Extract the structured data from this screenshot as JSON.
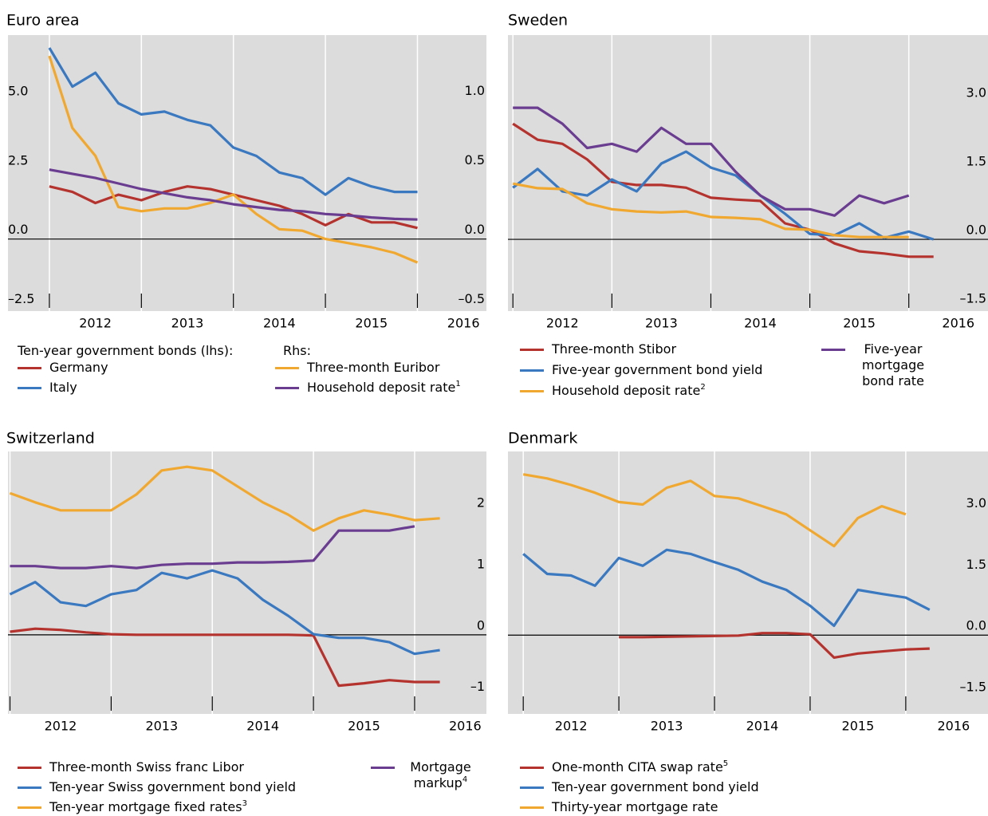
{
  "chart_data": [
    {
      "type": "line",
      "title": "Euro area",
      "legend_groups": [
        "Ten-year government bonds (lhs):",
        "Rhs:"
      ],
      "x": [
        2012,
        2012.25,
        2012.5,
        2012.75,
        2013,
        2013.25,
        2013.5,
        2013.75,
        2014,
        2014.25,
        2014.5,
        2014.75,
        2015,
        2015.25,
        2015.5,
        2015.75,
        2016
      ],
      "xlim": [
        2011.55,
        2016.75
      ],
      "xticks": [
        2012,
        2013,
        2014,
        2015,
        2016
      ],
      "ylim": [
        -2.6,
        7.36
      ],
      "yticks": [
        {
          "value": -2.5,
          "label": "–2.5"
        },
        {
          "value": 0,
          "label": "0.0"
        },
        {
          "value": 2.5,
          "label": "2.5"
        },
        {
          "value": 5,
          "label": "5.0"
        }
      ],
      "y2lim": [
        -0.52,
        1.47
      ],
      "y2ticks": [
        {
          "value": -0.5,
          "label": "–0.5"
        },
        {
          "value": 0,
          "label": "0.0"
        },
        {
          "value": 0.5,
          "label": "0.5"
        },
        {
          "value": 1,
          "label": "1.0"
        }
      ],
      "series": [
        {
          "name": "Germany",
          "color": "#b5332e",
          "values": [
            1.9,
            1.7,
            1.3,
            1.6,
            1.4,
            1.7,
            1.9,
            1.8,
            1.6,
            1.4,
            1.2,
            0.9,
            0.5,
            0.9,
            0.6,
            0.6,
            0.4
          ]
        },
        {
          "name": "Italy",
          "color": "#3a78c0",
          "values": [
            6.9,
            5.5,
            6.0,
            4.9,
            4.5,
            4.6,
            4.3,
            4.1,
            3.3,
            3.0,
            2.4,
            2.2,
            1.6,
            2.2,
            1.9,
            1.7,
            1.7
          ]
        },
        {
          "name": "Three-month Euribor",
          "color": "#f0a830",
          "axis": "y2",
          "values": [
            1.32,
            0.8,
            0.6,
            0.23,
            0.2,
            0.22,
            0.22,
            0.26,
            0.32,
            0.18,
            0.07,
            0.06,
            0,
            -0.03,
            -0.06,
            -0.1,
            -0.17
          ]
        },
        {
          "name": "Household deposit rate",
          "footnote": "1",
          "color": "#6a3d91",
          "axis": "y2",
          "values": [
            0.5,
            0.47,
            0.44,
            0.4,
            0.36,
            0.33,
            0.3,
            0.28,
            0.25,
            0.23,
            0.21,
            0.2,
            0.18,
            0.17,
            0.155,
            0.145,
            0.14
          ]
        }
      ]
    },
    {
      "type": "line",
      "title": "Sweden",
      "x": [
        2012,
        2012.25,
        2012.5,
        2012.75,
        2013,
        2013.25,
        2013.5,
        2013.75,
        2014,
        2014.25,
        2014.5,
        2014.75,
        2015,
        2015.25,
        2015.5,
        2015.75,
        2016,
        2016.25
      ],
      "xlim": [
        2011.95,
        2016.8
      ],
      "xticks": [
        2012,
        2013,
        2014,
        2015,
        2016
      ],
      "ylim": [
        -1.57,
        4.47
      ],
      "yticks": [
        {
          "value": -1.5,
          "label": "–1.5"
        },
        {
          "value": 0,
          "label": "0.0"
        },
        {
          "value": 1.5,
          "label": "1.5"
        },
        {
          "value": 3,
          "label": "3.0"
        }
      ],
      "series": [
        {
          "name": "Three-month Stibor",
          "color": "#b5332e",
          "values": [
            2.53,
            2.18,
            2.09,
            1.75,
            1.26,
            1.19,
            1.19,
            1.13,
            0.91,
            0.87,
            0.84,
            0.35,
            0.21,
            -0.09,
            -0.26,
            -0.31,
            -0.38,
            -0.38
          ]
        },
        {
          "name": "Five-year government bond yield",
          "color": "#3a78c0",
          "values": [
            1.13,
            1.54,
            1.05,
            0.96,
            1.31,
            1.05,
            1.66,
            1.92,
            1.57,
            1.4,
            0.96,
            0.56,
            0.12,
            0.09,
            0.35,
            0.03,
            0.17,
            0
          ]
        },
        {
          "name": "Household deposit rate",
          "footnote": "2",
          "color": "#f0a830",
          "values": [
            1.22,
            1.12,
            1.1,
            0.79,
            0.66,
            0.61,
            0.59,
            0.61,
            0.49,
            0.47,
            0.44,
            0.23,
            0.21,
            0.09,
            0.05,
            0.05,
            0.05,
            null
          ]
        },
        {
          "name": "Five-year mortgage bond rate",
          "color": "#6a3d91",
          "values": [
            2.88,
            2.88,
            2.53,
            2.0,
            2.09,
            1.92,
            2.44,
            2.09,
            2.09,
            1.48,
            0.96,
            0.66,
            0.66,
            0.52,
            0.96,
            0.79,
            0.96,
            null
          ]
        }
      ]
    },
    {
      "type": "line",
      "title": "Switzerland",
      "x": [
        2012,
        2012.25,
        2012.5,
        2012.75,
        2013,
        2013.25,
        2013.5,
        2013.75,
        2014,
        2014.25,
        2014.5,
        2014.75,
        2015,
        2015.25,
        2015.5,
        2015.75,
        2016,
        2016.25
      ],
      "xlim": [
        2011.98,
        2016.71
      ],
      "xticks": [
        2012,
        2013,
        2014,
        2015,
        2016
      ],
      "ylim": [
        -1.29,
        2.99
      ],
      "yticks": [
        {
          "value": -1,
          "label": "–1"
        },
        0,
        1,
        2
      ],
      "series": [
        {
          "name": "Three-month Swiss franc Libor",
          "color": "#b5332e",
          "values": [
            0.05,
            0.1,
            0.08,
            0.04,
            0.01,
            0.0,
            0.0,
            0.0,
            0.0,
            0.0,
            0.0,
            0.0,
            -0.01,
            -0.83,
            -0.79,
            -0.74,
            -0.77,
            -0.77
          ]
        },
        {
          "name": "Ten-year Swiss government bond yield",
          "color": "#3a78c0",
          "values": [
            0.66,
            0.86,
            0.53,
            0.47,
            0.66,
            0.73,
            1.01,
            0.92,
            1.05,
            0.92,
            0.57,
            0.31,
            0.01,
            -0.05,
            -0.05,
            -0.12,
            -0.31,
            -0.25
          ]
        },
        {
          "name": "Ten-year mortgage fixed rates",
          "footnote": "3",
          "color": "#f0a830",
          "values": [
            2.31,
            2.16,
            2.03,
            2.03,
            2.03,
            2.29,
            2.68,
            2.74,
            2.68,
            2.42,
            2.16,
            1.96,
            1.7,
            1.9,
            2.03,
            1.96,
            1.87,
            1.9
          ]
        },
        {
          "name": "Mortgage markup",
          "footnote": "4",
          "color": "#6a3d91",
          "values": [
            1.12,
            1.12,
            1.09,
            1.09,
            1.12,
            1.09,
            1.14,
            1.16,
            1.16,
            1.18,
            1.18,
            1.19,
            1.21,
            1.7,
            1.7,
            1.7,
            1.77,
            null
          ]
        }
      ]
    },
    {
      "type": "line",
      "title": "Denmark",
      "x": [
        2012,
        2012.25,
        2012.5,
        2012.75,
        2013,
        2013.25,
        2013.5,
        2013.75,
        2014,
        2014.25,
        2014.5,
        2014.75,
        2015,
        2015.25,
        2015.5,
        2015.75,
        2016,
        2016.25
      ],
      "xlim": [
        2011.84,
        2016.86
      ],
      "xticks": [
        2012,
        2013,
        2014,
        2015,
        2016
      ],
      "ylim": [
        -1.93,
        4.5
      ],
      "yticks": [
        {
          "value": -1.5,
          "label": "–1.5"
        },
        {
          "value": 0,
          "label": "0.0"
        },
        {
          "value": 1.5,
          "label": "1.5"
        },
        {
          "value": 3,
          "label": "3.0"
        }
      ],
      "series": [
        {
          "name": "One-month CITA swap rate",
          "footnote": "5",
          "color": "#b5332e",
          "values": [
            null,
            null,
            null,
            null,
            -0.05,
            -0.05,
            -0.04,
            -0.03,
            -0.02,
            -0.01,
            0.05,
            0.05,
            0.02,
            -0.55,
            -0.45,
            -0.4,
            -0.35,
            -0.33
          ]
        },
        {
          "name": "Ten-year government bond yield",
          "color": "#3a78c0",
          "values": [
            1.99,
            1.5,
            1.46,
            1.21,
            1.89,
            1.7,
            2.09,
            1.99,
            1.79,
            1.6,
            1.31,
            1.11,
            0.72,
            0.23,
            1.11,
            1.01,
            0.92,
            0.62
          ]
        },
        {
          "name": "Thirty-year mortgage rate",
          "color": "#f0a830",
          "values": [
            3.94,
            3.84,
            3.68,
            3.49,
            3.26,
            3.2,
            3.61,
            3.78,
            3.41,
            3.35,
            3.16,
            2.96,
            2.57,
            2.18,
            2.87,
            3.16,
            2.96,
            null
          ]
        }
      ]
    }
  ]
}
